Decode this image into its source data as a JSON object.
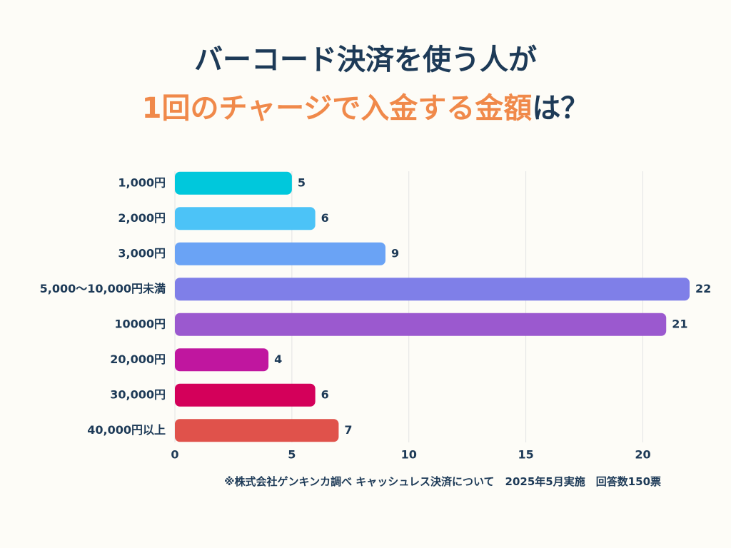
{
  "chart_data": {
    "type": "bar",
    "orientation": "horizontal",
    "title": [
      "バーコード決済を使う人が",
      "1回のチャージで入金する金額",
      "は？"
    ],
    "categories": [
      "1,000円",
      "2,000円",
      "3,000円",
      "5,000〜10,000円未満",
      "10000円",
      "20,000円",
      "30,000円",
      "40,000円以上"
    ],
    "values": [
      5,
      6,
      9,
      22,
      21,
      4,
      6,
      7
    ],
    "colors": [
      "#00c8dc",
      "#4cc3f7",
      "#6aa3f5",
      "#7f7fe8",
      "#9b59cf",
      "#c0169f",
      "#d4005a",
      "#e0524b"
    ],
    "xlim": [
      0,
      22
    ],
    "xticks": [
      0,
      5,
      10,
      15,
      20
    ],
    "grid": true,
    "note": "※株式会社ゲンキンカ調べ キャッシュレス決済について　2025年5月実施　回答数150票"
  }
}
